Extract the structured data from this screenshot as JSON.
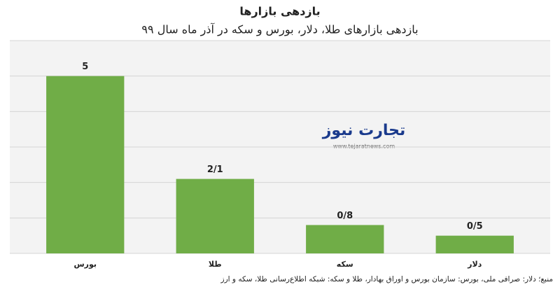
{
  "chart_data": {
    "type": "bar",
    "title": "بازدهی بازارها",
    "subtitle": "بازدهی بازارهای طلا، دلار، بورس و سکه در آذر ماه سال ۹۹",
    "categories": [
      "بورس",
      "طلا",
      "سکه",
      "دلار"
    ],
    "values": [
      5,
      2.1,
      0.8,
      0.5
    ],
    "value_labels": [
      "5",
      "2/1",
      "0/8",
      "0/5"
    ],
    "color": "#70ad47",
    "ylim": [
      0,
      6
    ],
    "yticks": [
      0,
      1,
      2,
      3,
      4,
      5,
      6
    ],
    "grid": true,
    "source": "منبع؛ دلار: صرافی ملی، بورس: سازمان بورس و اوراق بهادار، طلا و سکه: شبکه اطلاع‌رسانی طلا، سکه و ارز"
  },
  "watermark": {
    "logo": "تجارت نیوز",
    "url": "www.tejaratnews.com"
  }
}
